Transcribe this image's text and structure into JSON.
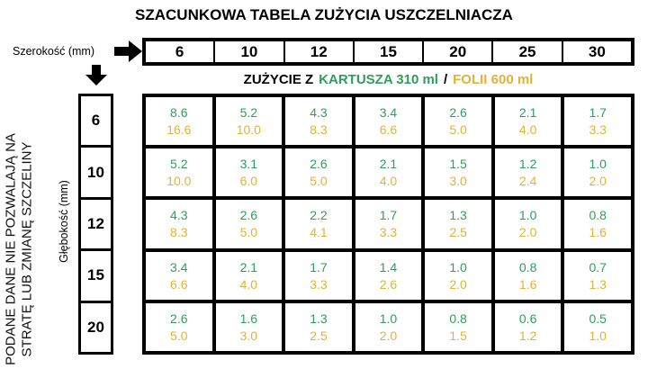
{
  "title": "SZACUNKOWA TABELA ZUŻYCIA USZCZELNIACZA",
  "width_axis": {
    "label": "Szerokość (mm)",
    "values": [
      "6",
      "10",
      "12",
      "15",
      "20",
      "25",
      "30"
    ]
  },
  "depth_axis": {
    "label": "Głębokość (mm)"
  },
  "legend": {
    "prefix": "ZUŻYCIE Z",
    "cartridge_label": "KARTUSZA 310 ml",
    "separator": "/",
    "foil_label": "FOLII 600 ml"
  },
  "side_note": {
    "line1": "PODANE DANE NIE POZWALAJĄ NA",
    "line2": "STRATĘ LUB ZMIANĘ SZCZELINY"
  },
  "colors": {
    "cartridge_green": "#2E9E5B",
    "foil_gold": "#E3B236",
    "border_black": "#000000"
  },
  "table": {
    "rows": [
      {
        "depth": "6",
        "cells": [
          {
            "cartridge": "8.6",
            "foil": "16.6"
          },
          {
            "cartridge": "5.2",
            "foil": "10.0"
          },
          {
            "cartridge": "4.3",
            "foil": "8.3"
          },
          {
            "cartridge": "3.4",
            "foil": "6.6"
          },
          {
            "cartridge": "2.6",
            "foil": "5.0"
          },
          {
            "cartridge": "2.1",
            "foil": "4.0"
          },
          {
            "cartridge": "1.7",
            "foil": "3.3"
          }
        ]
      },
      {
        "depth": "10",
        "cells": [
          {
            "cartridge": "5.2",
            "foil": "10.0"
          },
          {
            "cartridge": "3.1",
            "foil": "6.0"
          },
          {
            "cartridge": "2.6",
            "foil": "5.0"
          },
          {
            "cartridge": "2.1",
            "foil": "4.0"
          },
          {
            "cartridge": "1.5",
            "foil": "3.0"
          },
          {
            "cartridge": "1.2",
            "foil": "2.4"
          },
          {
            "cartridge": "1.0",
            "foil": "2.0"
          }
        ]
      },
      {
        "depth": "12",
        "cells": [
          {
            "cartridge": "4.3",
            "foil": "8.3"
          },
          {
            "cartridge": "2.6",
            "foil": "5.0"
          },
          {
            "cartridge": "2.2",
            "foil": "4.1"
          },
          {
            "cartridge": "1.7",
            "foil": "3.3"
          },
          {
            "cartridge": "1.3",
            "foil": "2.5"
          },
          {
            "cartridge": "1.0",
            "foil": "2.0"
          },
          {
            "cartridge": "0.8",
            "foil": "1.6"
          }
        ]
      },
      {
        "depth": "15",
        "cells": [
          {
            "cartridge": "3.4",
            "foil": "6.6"
          },
          {
            "cartridge": "2.1",
            "foil": "4.0"
          },
          {
            "cartridge": "1.7",
            "foil": "3.3"
          },
          {
            "cartridge": "1.4",
            "foil": "2.6"
          },
          {
            "cartridge": "1.0",
            "foil": "2.0"
          },
          {
            "cartridge": "0.8",
            "foil": "1.6"
          },
          {
            "cartridge": "0.7",
            "foil": "1.3"
          }
        ]
      },
      {
        "depth": "20",
        "cells": [
          {
            "cartridge": "2.6",
            "foil": "5.0"
          },
          {
            "cartridge": "1.6",
            "foil": "3.0"
          },
          {
            "cartridge": "1.3",
            "foil": "2.5"
          },
          {
            "cartridge": "1.0",
            "foil": "2.0"
          },
          {
            "cartridge": "0.8",
            "foil": "1.5"
          },
          {
            "cartridge": "0.6",
            "foil": "1.2"
          },
          {
            "cartridge": "0.5",
            "foil": "1.0"
          }
        ]
      }
    ]
  }
}
